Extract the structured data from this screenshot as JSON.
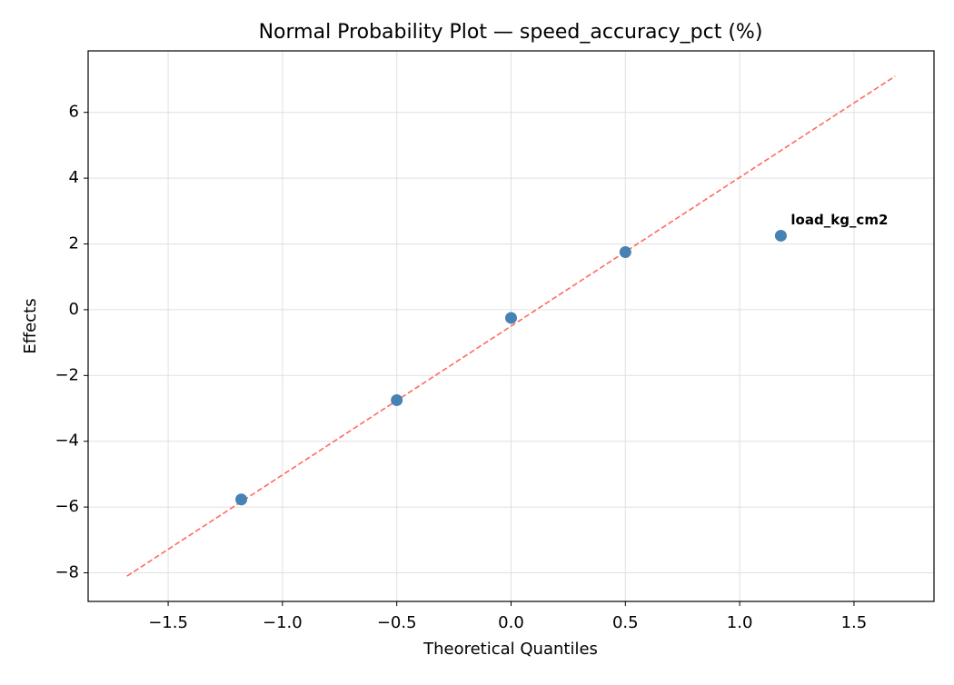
{
  "chart_data": {
    "type": "scatter",
    "title": "Normal Probability Plot — speed_accuracy_pct (%)",
    "x_label": "Theoretical Quantiles",
    "y_label": "Effects",
    "x": [
      -1.18,
      -0.5,
      0,
      0.5,
      1.18
    ],
    "values": [
      -5.77,
      -2.75,
      -0.25,
      1.75,
      2.25
    ],
    "point_labels": [
      null,
      null,
      null,
      null,
      "load_kg_cm2"
    ],
    "color": "#4682b4",
    "label_color": "#ff0000",
    "reference_line": {
      "x": [
        -1.68,
        1.68
      ],
      "y": [
        -8.1,
        7.1
      ],
      "color": "#ff6961",
      "dashed": true
    },
    "xlim": [
      -1.85,
      1.85
    ],
    "ylim": [
      -8.87,
      7.87
    ],
    "xticks": [
      {
        "value": -1.5,
        "label": "−1.5"
      },
      {
        "value": -1.0,
        "label": "−1.0"
      },
      {
        "value": -0.5,
        "label": "−0.5"
      },
      {
        "value": 0,
        "label": "0.0"
      },
      0.5,
      {
        "value": 1.0,
        "label": "1.0"
      },
      1.5
    ],
    "yticks": [
      {
        "value": -8,
        "label": "−8"
      },
      {
        "value": -6,
        "label": "−6"
      },
      {
        "value": -4,
        "label": "−4"
      },
      {
        "value": -2,
        "label": "−2"
      },
      0,
      2,
      4,
      6
    ],
    "grid": true
  }
}
